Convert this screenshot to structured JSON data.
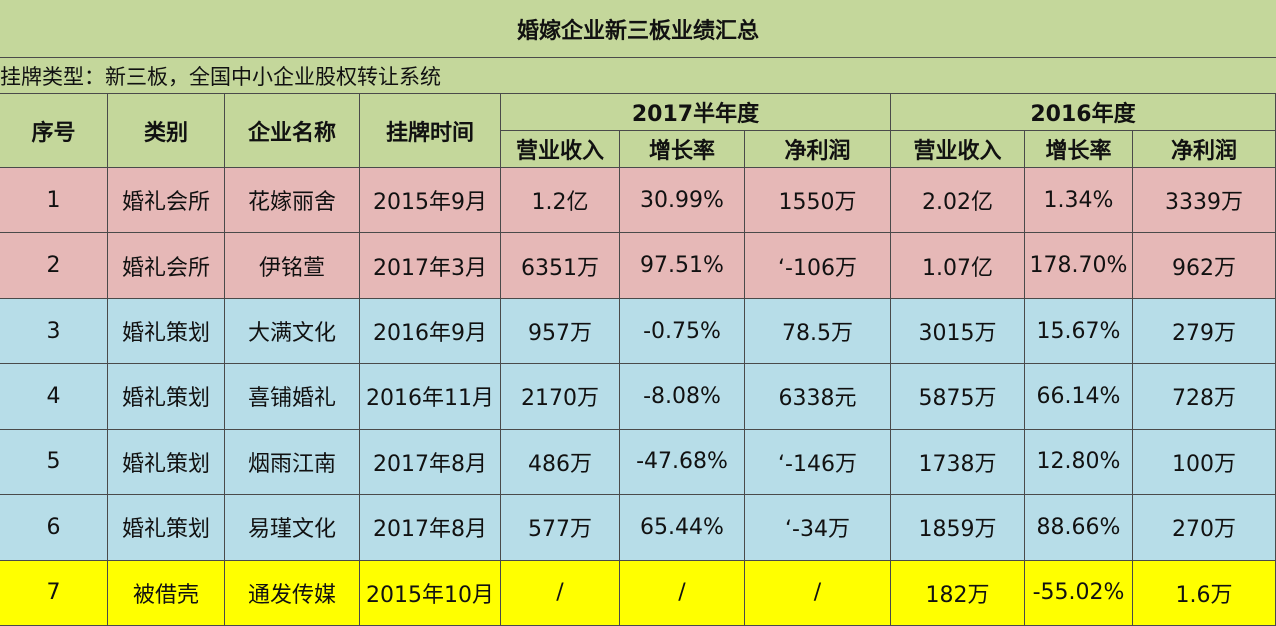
{
  "title": "婚嫁企业新三板业绩汇总",
  "subtitle": "挂牌类型：新三板，全国中小企业股权转让系统",
  "header": {
    "columns": [
      "序号",
      "类别",
      "企业名称",
      "挂牌时间"
    ],
    "groups": [
      "2017半年度",
      "2016年度"
    ],
    "subcolumns": [
      "营业收入",
      "增长率",
      "净利润",
      "营业收入",
      "增长率",
      "净利润"
    ]
  },
  "table": {
    "rows": [
      [
        "1",
        "婚礼会所",
        "花嫁丽舍",
        "2015年9月",
        "1.2亿",
        "30.99%",
        "1550万",
        "2.02亿",
        "1.34%",
        "3339万"
      ],
      [
        "2",
        "婚礼会所",
        "伊铭萱",
        "2017年3月",
        "6351万",
        "97.51%",
        "‘-106万",
        "1.07亿",
        "178.70%",
        "962万"
      ],
      [
        "3",
        "婚礼策划",
        "大满文化",
        "2016年9月",
        "957万",
        "-0.75%",
        "78.5万",
        "3015万",
        "15.67%",
        "279万"
      ],
      [
        "4",
        "婚礼策划",
        "喜铺婚礼",
        "2016年11月",
        "2170万",
        "-8.08%",
        "6338元",
        "5875万",
        "66.14%",
        "728万"
      ],
      [
        "5",
        "婚礼策划",
        "烟雨江南",
        "2017年8月",
        "486万",
        "-47.68%",
        "‘-146万",
        "1738万",
        "12.80%",
        "100万"
      ],
      [
        "6",
        "婚礼策划",
        "易瑾文化",
        "2017年8月",
        "577万",
        "65.44%",
        "‘-34万",
        "1859万",
        "88.66%",
        "270万"
      ],
      [
        "7",
        "被借壳",
        "通发传媒",
        "2015年10月",
        "/",
        "/",
        "/",
        "182万",
        "-55.02%",
        "1.6万"
      ]
    ]
  }
}
